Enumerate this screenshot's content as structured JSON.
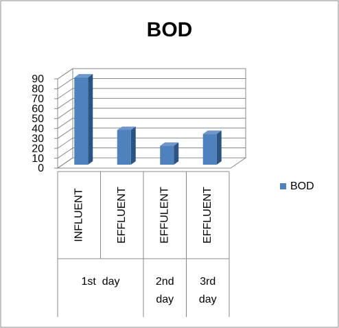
{
  "chart_data": {
    "type": "bar3d",
    "title": "BOD",
    "groups": [
      {
        "label": "1st  day",
        "categories": [
          "INFLUENT",
          "EFFLUENT"
        ]
      },
      {
        "label": "2nd day",
        "categories": [
          "EFFULENT"
        ]
      },
      {
        "label": "3rd day",
        "categories": [
          "EFFLUENT"
        ]
      }
    ],
    "series": [
      {
        "name": "BOD",
        "color": "#4f81bd",
        "values": [
          88,
          35,
          19,
          31
        ]
      }
    ],
    "ylim": [
      0,
      90
    ],
    "yticks": [
      0,
      10,
      20,
      30,
      40,
      50,
      60,
      70,
      80,
      90
    ],
    "grid": true,
    "legend": "right"
  }
}
